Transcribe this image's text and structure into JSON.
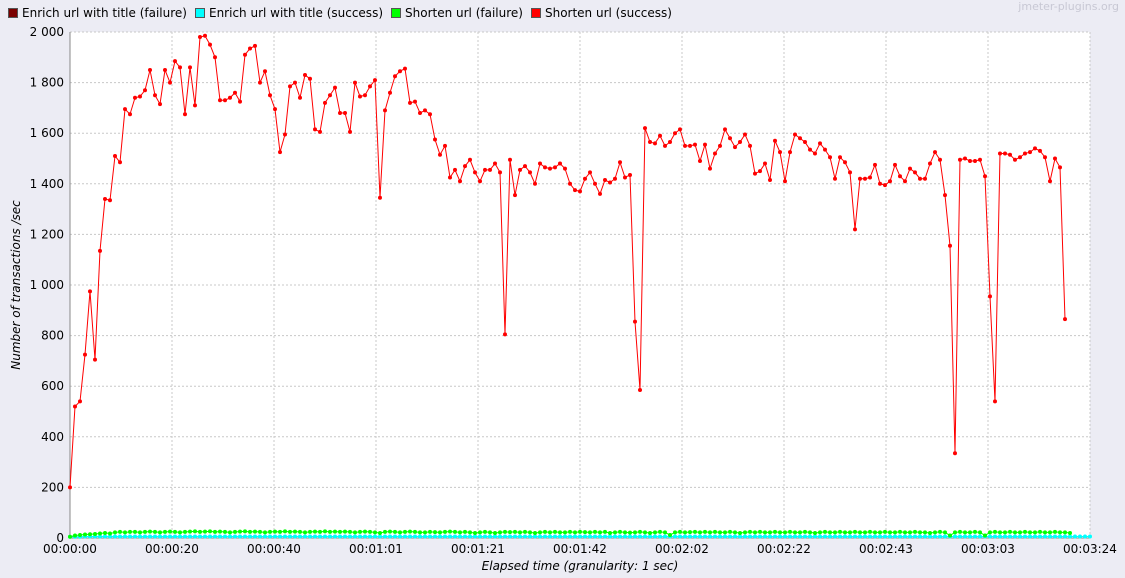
{
  "watermark": "jmeter-plugins.org",
  "colors": {
    "background": "#ececf4",
    "plot_background": "#ffffff",
    "grid": "#c8c8c8"
  },
  "chart_data": {
    "type": "line",
    "xlabel": "Elapsed time (granularity: 1 sec)",
    "ylabel": "Number of transactions /sec",
    "ylim": [
      0,
      2000
    ],
    "xlim": [
      0,
      204
    ],
    "x_unit": "seconds",
    "x_tick_labels": [
      "00:00:00",
      "00:00:20",
      "00:00:40",
      "00:01:01",
      "00:01:21",
      "00:01:42",
      "00:02:02",
      "00:02:22",
      "00:02:43",
      "00:03:03",
      "00:03:24"
    ],
    "y_tick_labels": [
      "0",
      "200",
      "400",
      "600",
      "800",
      "1 000",
      "1 200",
      "1 400",
      "1 600",
      "1 800",
      "2 000"
    ],
    "y_ticks": [
      0,
      200,
      400,
      600,
      800,
      1000,
      1200,
      1400,
      1600,
      1800,
      2000
    ],
    "grid": true,
    "legend_position": "top-left",
    "series": [
      {
        "name": "Enrich url with title (failure)",
        "color": "#7a0000",
        "values": []
      },
      {
        "name": "Enrich url with title (success)",
        "color": "#00ffff",
        "values": [
          5,
          5,
          5,
          6,
          6,
          6,
          6,
          6,
          6,
          6,
          6,
          6,
          6,
          6,
          6,
          6,
          6,
          6,
          6,
          6,
          6,
          6,
          6,
          6,
          6,
          6,
          6,
          6,
          6,
          6,
          6,
          6,
          6,
          6,
          6,
          6,
          6,
          6,
          6,
          6,
          6,
          6,
          6,
          6,
          6,
          6,
          6,
          6,
          6,
          6,
          6,
          6,
          6,
          6,
          6,
          6,
          6,
          6,
          6,
          6,
          6,
          6,
          6,
          6,
          6,
          6,
          6,
          6,
          6,
          6,
          6,
          6,
          6,
          6,
          6,
          6,
          6,
          6,
          6,
          6,
          6,
          6,
          6,
          6,
          6,
          6,
          6,
          6,
          6,
          6,
          6,
          6,
          6,
          6,
          6,
          6,
          6,
          6,
          6,
          6,
          6,
          6,
          6,
          6,
          6,
          6,
          6,
          6,
          6,
          6,
          6,
          6,
          6,
          6,
          6,
          6,
          6,
          6,
          6,
          6,
          6,
          6,
          6,
          6,
          6,
          6,
          6,
          6,
          6,
          6,
          6,
          6,
          6,
          6,
          6,
          6,
          6,
          6,
          6,
          6,
          6,
          6,
          6,
          6,
          6,
          6,
          6,
          6,
          6,
          6,
          6,
          6,
          6,
          6,
          6,
          6,
          6,
          6,
          6,
          6,
          6,
          6,
          6,
          6,
          6,
          6,
          6,
          6,
          6,
          6,
          6,
          6,
          6,
          6,
          6,
          6,
          6,
          6,
          6,
          6,
          6,
          6,
          6,
          6,
          6,
          6,
          6,
          6,
          6,
          6,
          6,
          6,
          6,
          6,
          6,
          6,
          6,
          6,
          6,
          6,
          6,
          6,
          6,
          6,
          6
        ]
      },
      {
        "name": "Shorten url (failure)",
        "color": "#00ff00",
        "values": [
          5,
          10,
          12,
          14,
          15,
          16,
          18,
          20,
          18,
          22,
          24,
          22,
          24,
          24,
          22,
          24,
          25,
          24,
          22,
          24,
          25,
          24,
          22,
          24,
          25,
          26,
          24,
          25,
          26,
          24,
          25,
          24,
          22,
          24,
          25,
          26,
          24,
          25,
          24,
          22,
          24,
          25,
          24,
          26,
          24,
          25,
          24,
          22,
          24,
          25,
          24,
          26,
          24,
          25,
          24,
          25,
          24,
          22,
          24,
          25,
          24,
          22,
          20,
          24,
          25,
          24,
          22,
          24,
          25,
          24,
          22,
          22,
          24,
          23,
          22,
          24,
          25,
          24,
          22,
          24,
          22,
          20,
          22,
          24,
          22,
          20,
          22,
          24,
          23,
          24,
          22,
          24,
          22,
          20,
          22,
          24,
          22,
          24,
          22,
          22,
          24,
          22,
          24,
          23,
          22,
          24,
          22,
          24,
          20,
          22,
          24,
          22,
          21,
          22,
          24,
          22,
          20,
          22,
          24,
          22,
          12,
          22,
          24,
          22,
          23,
          24,
          22,
          24,
          22,
          24,
          22,
          22,
          24,
          22,
          20,
          22,
          24,
          22,
          24,
          22,
          22,
          24,
          22,
          22,
          24,
          22,
          22,
          24,
          22,
          20,
          22,
          24,
          22,
          22,
          24,
          22,
          22,
          24,
          22,
          22,
          24,
          22,
          22,
          24,
          22,
          22,
          24,
          22,
          22,
          24,
          22,
          22,
          20,
          22,
          24,
          22,
          10,
          22,
          24,
          22,
          22,
          24,
          22,
          10,
          22,
          24,
          22,
          22,
          24,
          22,
          22,
          24,
          22,
          22,
          24,
          22,
          22,
          24,
          22,
          22,
          20
        ]
      },
      {
        "name": "Shorten url (success)",
        "color": "#ff0000",
        "values": [
          200,
          520,
          540,
          725,
          975,
          705,
          1135,
          1340,
          1335,
          1510,
          1485,
          1695,
          1675,
          1740,
          1745,
          1770,
          1850,
          1750,
          1715,
          1850,
          1800,
          1885,
          1860,
          1675,
          1860,
          1710,
          1980,
          1985,
          1950,
          1900,
          1730,
          1730,
          1740,
          1760,
          1725,
          1910,
          1935,
          1945,
          1800,
          1845,
          1750,
          1695,
          1525,
          1595,
          1785,
          1800,
          1740,
          1830,
          1815,
          1615,
          1605,
          1720,
          1750,
          1780,
          1680,
          1680,
          1605,
          1800,
          1745,
          1750,
          1785,
          1810,
          1345,
          1690,
          1760,
          1825,
          1845,
          1855,
          1720,
          1725,
          1680,
          1690,
          1675,
          1575,
          1515,
          1550,
          1425,
          1455,
          1410,
          1470,
          1495,
          1445,
          1410,
          1455,
          1455,
          1480,
          1445,
          805,
          1495,
          1355,
          1455,
          1470,
          1445,
          1400,
          1480,
          1465,
          1460,
          1465,
          1480,
          1460,
          1400,
          1375,
          1370,
          1420,
          1445,
          1400,
          1360,
          1415,
          1405,
          1420,
          1485,
          1425,
          1435,
          855,
          585,
          1620,
          1565,
          1560,
          1590,
          1550,
          1565,
          1600,
          1615,
          1550,
          1550,
          1555,
          1490,
          1555,
          1460,
          1520,
          1550,
          1615,
          1580,
          1545,
          1565,
          1595,
          1550,
          1440,
          1450,
          1480,
          1415,
          1570,
          1525,
          1410,
          1525,
          1595,
          1580,
          1565,
          1535,
          1520,
          1560,
          1535,
          1505,
          1420,
          1505,
          1485,
          1445,
          1220,
          1420,
          1420,
          1425,
          1475,
          1400,
          1395,
          1410,
          1475,
          1430,
          1410,
          1460,
          1445,
          1420,
          1420,
          1480,
          1525,
          1495,
          1355,
          1155,
          335,
          1495,
          1500,
          1490,
          1490,
          1495,
          1430,
          955,
          540,
          1520,
          1520,
          1515,
          1495,
          1505,
          1520,
          1525,
          1540,
          1530,
          1505,
          1410,
          1500,
          1465,
          865
        ]
      }
    ]
  }
}
